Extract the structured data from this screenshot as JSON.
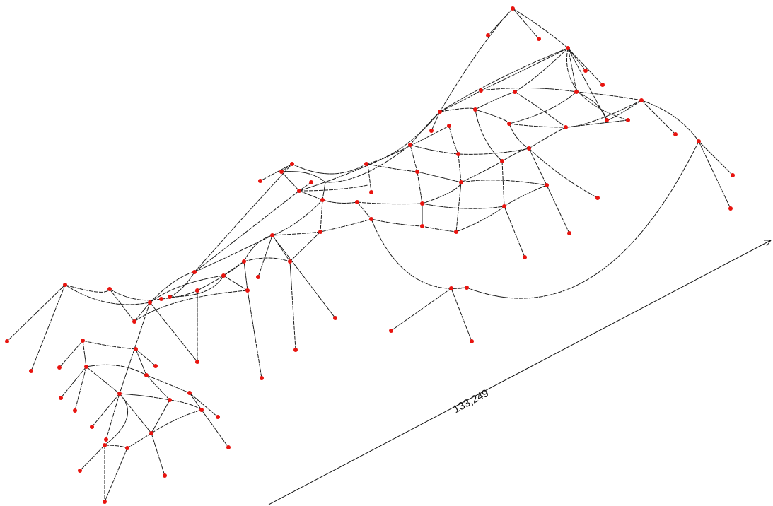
{
  "dimension": {
    "label": "133,249"
  }
}
